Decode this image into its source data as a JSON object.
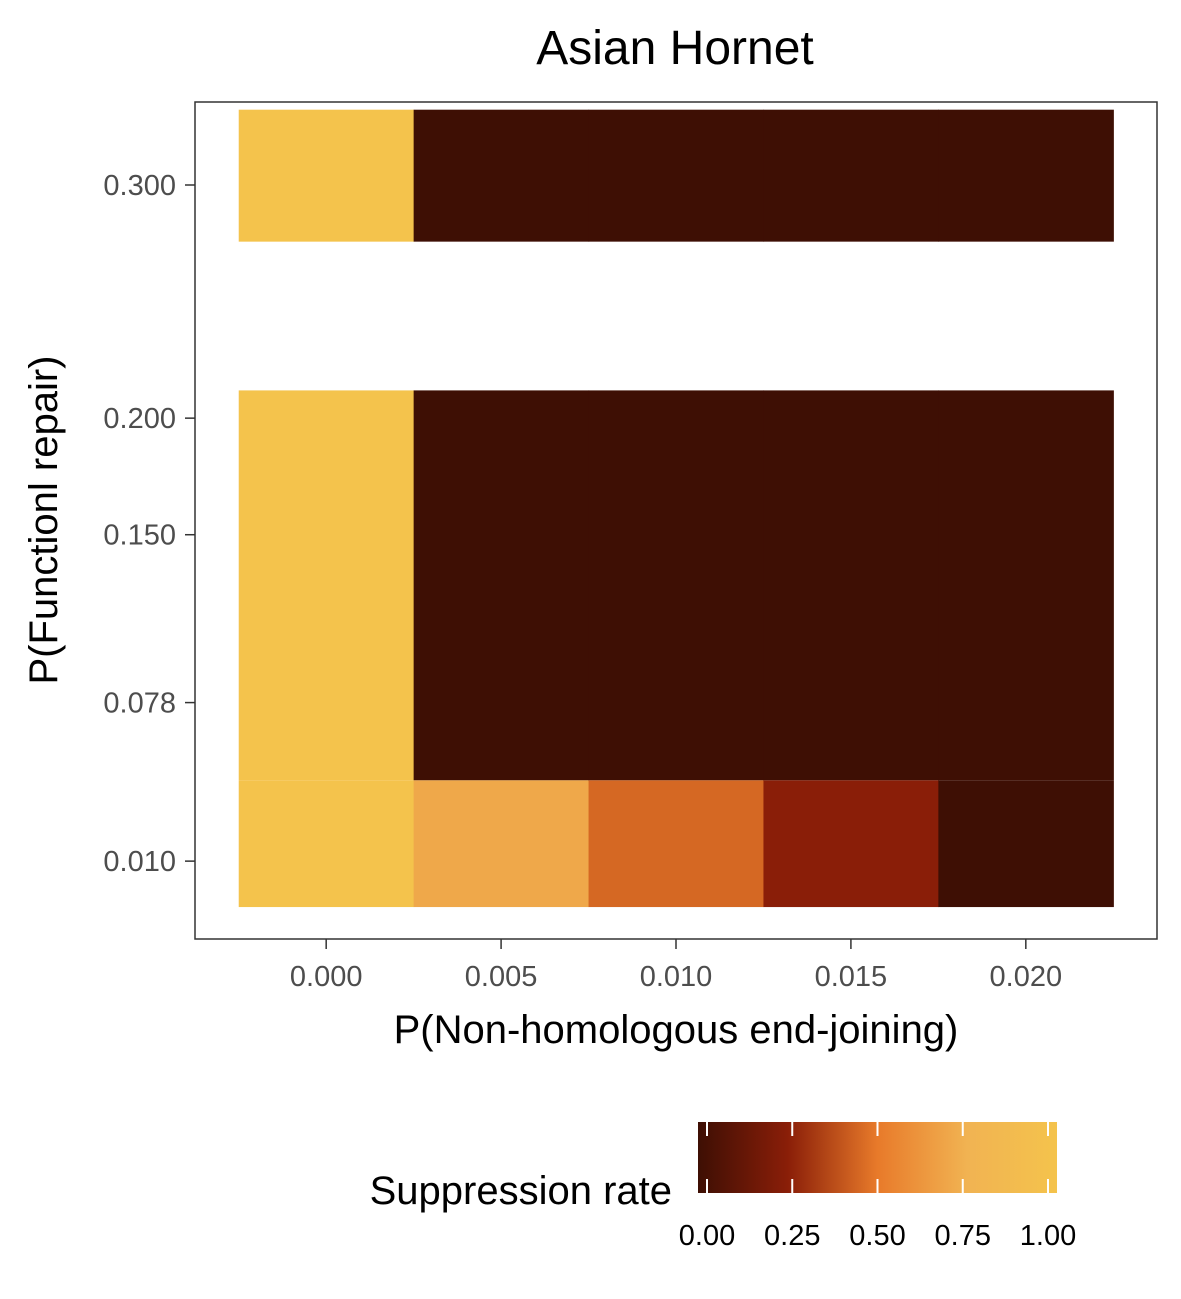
{
  "chart_data": {
    "type": "heatmap",
    "title": "Asian Hornet",
    "xlabel": "P(Non-homologous end-joining)",
    "ylabel": "P(Functionl repair)",
    "x_ticks": [
      "0.000",
      "0.005",
      "0.010",
      "0.015",
      "0.020"
    ],
    "y_ticks": [
      "0.010",
      "0.078",
      "0.150",
      "0.200",
      "0.300"
    ],
    "xlim": [
      -0.00375,
      0.02375
    ],
    "ylim": [
      -0.0234,
      0.3356
    ],
    "cells": [
      {
        "x": 0.0,
        "y_range": [
          -0.0097,
          0.0447
        ],
        "value": 1.0
      },
      {
        "x": 0.005,
        "y_range": [
          -0.0097,
          0.0447
        ],
        "value": 0.7
      },
      {
        "x": 0.01,
        "y_range": [
          -0.0097,
          0.0447
        ],
        "value": 0.45
      },
      {
        "x": 0.015,
        "y_range": [
          -0.0097,
          0.0447
        ],
        "value": 0.25
      },
      {
        "x": 0.02,
        "y_range": [
          -0.0097,
          0.0447
        ],
        "value": 0.0
      },
      {
        "x": 0.0,
        "y_range": [
          0.0447,
          0.2119
        ],
        "value": 1.0
      },
      {
        "x": 0.005,
        "y_range": [
          0.0447,
          0.2119
        ],
        "value": 0.0
      },
      {
        "x": 0.01,
        "y_range": [
          0.0447,
          0.2119
        ],
        "value": 0.0
      },
      {
        "x": 0.015,
        "y_range": [
          0.0447,
          0.2119
        ],
        "value": 0.0
      },
      {
        "x": 0.02,
        "y_range": [
          0.0447,
          0.2119
        ],
        "value": 0.0
      },
      {
        "x": 0.0,
        "y_range": [
          0.2757,
          0.3323
        ],
        "value": 1.0
      },
      {
        "x": 0.005,
        "y_range": [
          0.2757,
          0.3323
        ],
        "value": 0.0
      },
      {
        "x": 0.01,
        "y_range": [
          0.2757,
          0.3323
        ],
        "value": 0.0
      },
      {
        "x": 0.015,
        "y_range": [
          0.2757,
          0.3323
        ],
        "value": 0.0
      },
      {
        "x": 0.02,
        "y_range": [
          0.2757,
          0.3323
        ],
        "value": 0.0
      }
    ],
    "legend": {
      "title": "Suppression rate",
      "position": "bottom",
      "labels": [
        "0.00",
        "0.25",
        "0.50",
        "0.75",
        "1.00"
      ],
      "range": [
        0,
        1
      ],
      "colors": [
        "#3e0f04",
        "#8a1e08",
        "#e87a2a",
        "#f1b352",
        "#f4c34c"
      ]
    },
    "grid": false
  }
}
